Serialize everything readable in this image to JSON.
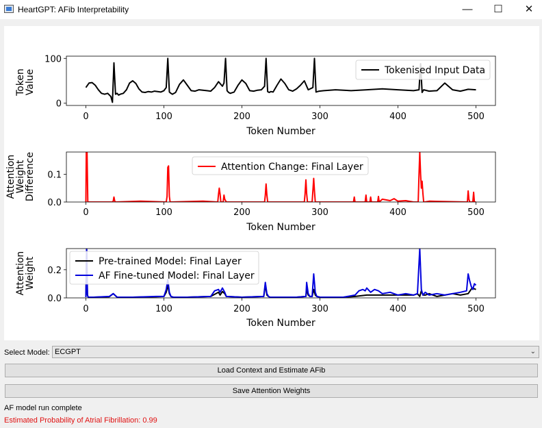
{
  "window": {
    "title": "HeartGPT: AFib Interpretability",
    "icon": "app-window-icon",
    "minimize_symbol": "—",
    "maximize_symbol": "☐",
    "close_symbol": "✕"
  },
  "controls": {
    "select_label": "Select Model:",
    "selected_model": "ECGPT",
    "load_button": "Load Context and Estimate AFib",
    "save_button": "Save Attention Weights"
  },
  "status": {
    "run_message": "AF model run complete",
    "probability_message": "Estimated Probability of Atrial Fibrillation: 0.99",
    "probability_color": "#e01010"
  },
  "chart_data": [
    {
      "type": "line",
      "xlabel": "Token Number",
      "ylabel": [
        "Token",
        "Value"
      ],
      "xlim": [
        -25,
        525
      ],
      "ylim": [
        -5,
        105
      ],
      "xticks": [
        0,
        100,
        200,
        300,
        400,
        500
      ],
      "yticks": [
        0,
        100
      ],
      "yticklabels": [
        "0",
        "100"
      ],
      "legend": "top-right",
      "series": [
        {
          "name": "Tokenised Input Data",
          "color": "#000000",
          "x": [
            0,
            4,
            8,
            12,
            16,
            20,
            24,
            28,
            32,
            34,
            36,
            38,
            40,
            42,
            44,
            48,
            52,
            56,
            60,
            64,
            68,
            72,
            76,
            80,
            84,
            88,
            92,
            96,
            100,
            103,
            105,
            107,
            109,
            111,
            115,
            120,
            125,
            130,
            135,
            140,
            145,
            150,
            155,
            160,
            165,
            170,
            175,
            177,
            179,
            181,
            183,
            185,
            190,
            195,
            200,
            205,
            210,
            215,
            220,
            225,
            229,
            231,
            233,
            235,
            237,
            240,
            245,
            250,
            255,
            260,
            265,
            270,
            275,
            280,
            285,
            291,
            293,
            295,
            297,
            299,
            305,
            320,
            340,
            360,
            380,
            400,
            420,
            427,
            429,
            431,
            433,
            440,
            450,
            460,
            470,
            480,
            490,
            500
          ],
          "y": [
            35,
            45,
            46,
            40,
            30,
            22,
            20,
            22,
            15,
            2,
            90,
            20,
            22,
            18,
            20,
            22,
            30,
            45,
            50,
            44,
            32,
            25,
            24,
            26,
            25,
            27,
            26,
            25,
            28,
            35,
            100,
            25,
            22,
            20,
            24,
            42,
            52,
            40,
            28,
            27,
            30,
            29,
            28,
            27,
            35,
            48,
            38,
            45,
            100,
            28,
            24,
            22,
            25,
            40,
            52,
            44,
            28,
            27,
            29,
            30,
            38,
            100,
            26,
            24,
            26,
            25,
            40,
            54,
            44,
            30,
            27,
            32,
            40,
            50,
            30,
            35,
            100,
            25,
            26,
            27,
            28,
            30,
            28,
            30,
            32,
            30,
            28,
            30,
            88,
            24,
            30,
            27,
            28,
            45,
            30,
            27,
            31,
            30
          ]
        }
      ]
    },
    {
      "type": "line",
      "xlabel": "Token Number",
      "ylabel": [
        "Attention",
        "Weight",
        "Difference"
      ],
      "xlim": [
        -25,
        525
      ],
      "ylim": [
        0,
        0.18
      ],
      "xticks": [
        0,
        100,
        200,
        300,
        400,
        500
      ],
      "yticks": [
        0,
        0.1
      ],
      "yticklabels": [
        "0.0",
        "0.1"
      ],
      "legend": "top-center",
      "series": [
        {
          "name": "Attention Change: Final Layer",
          "color": "#ff0000",
          "x": [
            0,
            0.5,
            1.5,
            2.5,
            34,
            35,
            36,
            37,
            38,
            70,
            103,
            104,
            105,
            106,
            107,
            108,
            150,
            169,
            170,
            171,
            172,
            173,
            176,
            177,
            178,
            180,
            229,
            230,
            231,
            232,
            233,
            280,
            281,
            282,
            283,
            284,
            290,
            291,
            292,
            293,
            294,
            343,
            344,
            345,
            358,
            359,
            360,
            364,
            365,
            366,
            374,
            375,
            376,
            380,
            390,
            395,
            400,
            410,
            420,
            426,
            427,
            428,
            429,
            430,
            431,
            432,
            433,
            434,
            440,
            489,
            490,
            491,
            492,
            496,
            497,
            498,
            500
          ],
          "y": [
            0,
            0.18,
            0.18,
            0,
            0,
            0.003,
            0.018,
            0.003,
            0,
            0.003,
            0,
            0.02,
            0.125,
            0.13,
            0.02,
            0,
            0.003,
            0,
            0.028,
            0.05,
            0.028,
            0,
            0,
            0.025,
            0.01,
            0,
            0,
            0.025,
            0.065,
            0.025,
            0,
            0,
            0.03,
            0.08,
            0.03,
            0,
            0,
            0.04,
            0.085,
            0.04,
            0,
            0,
            0.018,
            0,
            0,
            0.025,
            0,
            0,
            0.018,
            0,
            0,
            0.02,
            0,
            0.01,
            0.005,
            0.012,
            0.003,
            0.005,
            0,
            0,
            0.1,
            0.18,
            0.1,
            0.05,
            0.075,
            0.03,
            0,
            0,
            0.003,
            0,
            0.04,
            0.01,
            0,
            0,
            0.035,
            0,
            0
          ]
        }
      ]
    },
    {
      "type": "line",
      "xlabel": "Token Number",
      "ylabel": [
        "Attention",
        "Weight"
      ],
      "xlim": [
        -25,
        525
      ],
      "ylim": [
        0,
        0.35
      ],
      "xticks": [
        0,
        100,
        200,
        300,
        400,
        500
      ],
      "yticks": [
        0,
        0.2
      ],
      "yticklabels": [
        "0.0",
        "0.2"
      ],
      "legend": "top-left",
      "series": [
        {
          "name": "Pre-trained Model: Final Layer",
          "color": "#000000",
          "x": [
            0,
            1,
            2,
            3,
            10,
            30,
            35,
            40,
            60,
            90,
            100,
            103,
            105,
            107,
            109,
            112,
            130,
            160,
            170,
            172,
            175,
            178,
            180,
            200,
            228,
            230,
            232,
            234,
            236,
            270,
            282,
            283,
            285,
            287,
            290,
            292,
            294,
            296,
            300,
            330,
            345,
            360,
            380,
            400,
            420,
            425,
            428,
            430,
            432,
            435,
            440,
            450,
            460,
            470,
            480,
            490,
            495,
            500
          ],
          "y": [
            0.005,
            0.35,
            0.02,
            0.005,
            0.005,
            0.008,
            0.03,
            0.005,
            0.005,
            0.008,
            0.01,
            0.04,
            0.09,
            0.03,
            0.01,
            0.005,
            0.005,
            0.01,
            0.04,
            0.02,
            0.045,
            0.03,
            0.01,
            0.005,
            0.01,
            0.09,
            0.02,
            0.01,
            0.005,
            0.005,
            0.01,
            0.06,
            0.02,
            0.01,
            0.01,
            0.06,
            0.02,
            0.01,
            0.005,
            0.005,
            0.01,
            0.02,
            0.02,
            0.02,
            0.02,
            0.03,
            0.01,
            0.05,
            0.02,
            0.02,
            0.03,
            0.01,
            0.02,
            0.03,
            0.02,
            0.03,
            0.07,
            0.06
          ]
        },
        {
          "name": "AF Fine-tuned Model: Final Layer",
          "color": "#0000dd",
          "x": [
            0,
            1,
            2,
            3,
            10,
            30,
            35,
            40,
            60,
            90,
            100,
            103,
            105,
            107,
            109,
            112,
            130,
            160,
            165,
            170,
            172,
            175,
            178,
            180,
            200,
            228,
            230,
            232,
            234,
            236,
            270,
            282,
            283,
            285,
            287,
            290,
            292,
            294,
            296,
            300,
            330,
            345,
            350,
            355,
            358,
            360,
            365,
            370,
            375,
            380,
            390,
            400,
            410,
            420,
            425,
            428,
            430,
            432,
            435,
            440,
            450,
            460,
            470,
            480,
            488,
            490,
            492,
            494,
            496,
            498,
            500
          ],
          "y": [
            0.005,
            0.35,
            0.02,
            0.005,
            0.005,
            0.01,
            0.03,
            0.005,
            0.005,
            0.01,
            0.01,
            0.06,
            0.13,
            0.04,
            0.01,
            0.005,
            0.005,
            0.01,
            0.05,
            0.06,
            0.04,
            0.07,
            0.04,
            0.01,
            0.005,
            0.01,
            0.11,
            0.03,
            0.01,
            0.005,
            0.005,
            0.01,
            0.11,
            0.03,
            0.01,
            0.01,
            0.17,
            0.04,
            0.01,
            0.005,
            0.005,
            0.02,
            0.05,
            0.06,
            0.05,
            0.07,
            0.04,
            0.06,
            0.05,
            0.03,
            0.04,
            0.02,
            0.03,
            0.02,
            0.03,
            0.35,
            0.06,
            0.02,
            0.04,
            0.02,
            0.03,
            0.02,
            0.03,
            0.04,
            0.05,
            0.17,
            0.12,
            0.08,
            0.06,
            0.1,
            0.09
          ]
        }
      ]
    }
  ]
}
